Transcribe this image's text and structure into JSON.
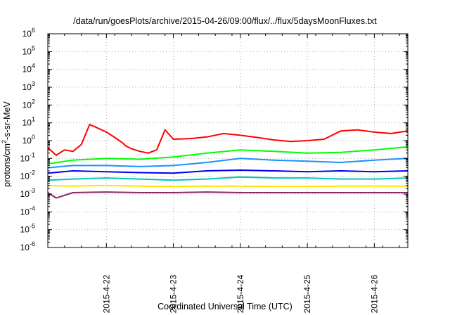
{
  "chart_data": {
    "type": "line",
    "title": "/data/run/goesPlots/archive/2015-04-26/09:00/flux/../flux/5daysMoonFluxes.txt",
    "xlabel": "Coordinated Universal Time (UTC)",
    "ylabel": {
      "base": "protons/cm",
      "sup": "2",
      "rest": "-s-sr-MeV"
    },
    "y_scale": "log",
    "ylim": [
      1e-06,
      1000000.0
    ],
    "y_ticks": [
      {
        "base": "10",
        "exp": "-6",
        "value": 1e-06
      },
      {
        "base": "10",
        "exp": "-5",
        "value": 1e-05
      },
      {
        "base": "10",
        "exp": "-4",
        "value": 0.0001
      },
      {
        "base": "10",
        "exp": "-3",
        "value": 0.001
      },
      {
        "base": "10",
        "exp": "-2",
        "value": 0.01
      },
      {
        "base": "10",
        "exp": "-1",
        "value": 0.1
      },
      {
        "base": "10",
        "exp": "0",
        "value": 1
      },
      {
        "base": "10",
        "exp": "1",
        "value": 10
      },
      {
        "base": "10",
        "exp": "2",
        "value": 100
      },
      {
        "base": "10",
        "exp": "3",
        "value": 1000
      },
      {
        "base": "10",
        "exp": "4",
        "value": 10000
      },
      {
        "base": "10",
        "exp": "5",
        "value": 100000
      },
      {
        "base": "10",
        "exp": "6",
        "value": 1000000
      }
    ],
    "x_ticks": [
      {
        "label": "2015-4-22",
        "value": "2015-04-22"
      },
      {
        "label": "2015-4-23",
        "value": "2015-04-23"
      },
      {
        "label": "2015-4-24",
        "value": "2015-04-24"
      },
      {
        "label": "2015-4-25",
        "value": "2015-04-25"
      },
      {
        "label": "2015-4-26",
        "value": "2015-04-26"
      }
    ],
    "xlim": [
      "2015-04-21 03:00",
      "2015-04-26 12:00"
    ],
    "grid": true,
    "legend": "none",
    "series": [
      {
        "color": "#ff0000",
        "x": [
          "2015-04-21 03:00",
          "2015-04-21 06:00",
          "2015-04-21 09:00",
          "2015-04-21 12:00",
          "2015-04-21 15:00",
          "2015-04-21 18:00",
          "2015-04-21 21:00",
          "2015-04-22 00:00",
          "2015-04-22 03:00",
          "2015-04-22 06:00",
          "2015-04-22 07:00",
          "2015-04-22 09:00",
          "2015-04-22 12:00",
          "2015-04-22 15:00",
          "2015-04-22 18:00",
          "2015-04-22 21:00",
          "2015-04-23 00:00",
          "2015-04-23 06:00",
          "2015-04-23 12:00",
          "2015-04-23 18:00",
          "2015-04-24 00:00",
          "2015-04-24 06:00",
          "2015-04-24 12:00",
          "2015-04-24 18:00",
          "2015-04-25 00:00",
          "2015-04-25 06:00",
          "2015-04-25 12:00",
          "2015-04-25 18:00",
          "2015-04-26 00:00",
          "2015-04-26 06:00",
          "2015-04-26 12:00"
        ],
        "y": [
          0.4,
          0.15,
          0.3,
          0.25,
          0.6,
          8,
          5,
          3,
          1.5,
          0.7,
          0.5,
          0.35,
          0.25,
          0.2,
          0.3,
          4,
          1.2,
          1.3,
          1.6,
          2.5,
          2,
          1.5,
          1.1,
          0.9,
          1,
          1.2,
          3.5,
          4,
          3,
          2.5,
          3.5
        ]
      },
      {
        "color": "#00ff00",
        "x": [
          "2015-04-21 03:00",
          "2015-04-21 12:00",
          "2015-04-22 00:00",
          "2015-04-22 12:00",
          "2015-04-23 00:00",
          "2015-04-23 12:00",
          "2015-04-24 00:00",
          "2015-04-24 12:00",
          "2015-04-25 00:00",
          "2015-04-25 12:00",
          "2015-04-26 00:00",
          "2015-04-26 12:00"
        ],
        "y": [
          0.05,
          0.08,
          0.1,
          0.09,
          0.12,
          0.2,
          0.3,
          0.25,
          0.2,
          0.22,
          0.3,
          0.45
        ]
      },
      {
        "color": "#1e90ff",
        "x": [
          "2015-04-21 03:00",
          "2015-04-21 12:00",
          "2015-04-22 00:00",
          "2015-04-22 12:00",
          "2015-04-23 00:00",
          "2015-04-23 12:00",
          "2015-04-24 00:00",
          "2015-04-24 12:00",
          "2015-04-25 00:00",
          "2015-04-25 12:00",
          "2015-04-26 00:00",
          "2015-04-26 12:00"
        ],
        "y": [
          0.03,
          0.04,
          0.04,
          0.035,
          0.04,
          0.06,
          0.1,
          0.08,
          0.07,
          0.06,
          0.08,
          0.1
        ]
      },
      {
        "color": "#0000ee",
        "x": [
          "2015-04-21 03:00",
          "2015-04-21 12:00",
          "2015-04-22 00:00",
          "2015-04-22 12:00",
          "2015-04-23 00:00",
          "2015-04-23 12:00",
          "2015-04-24 00:00",
          "2015-04-24 12:00",
          "2015-04-25 00:00",
          "2015-04-25 12:00",
          "2015-04-26 00:00",
          "2015-04-26 12:00"
        ],
        "y": [
          0.015,
          0.02,
          0.018,
          0.016,
          0.015,
          0.02,
          0.022,
          0.02,
          0.018,
          0.02,
          0.018,
          0.02
        ]
      },
      {
        "color": "#00c8b4",
        "x": [
          "2015-04-21 03:00",
          "2015-04-21 12:00",
          "2015-04-22 00:00",
          "2015-04-22 12:00",
          "2015-04-23 00:00",
          "2015-04-23 12:00",
          "2015-04-24 00:00",
          "2015-04-24 12:00",
          "2015-04-25 00:00",
          "2015-04-25 12:00",
          "2015-04-26 00:00",
          "2015-04-26 12:00"
        ],
        "y": [
          0.006,
          0.007,
          0.008,
          0.007,
          0.006,
          0.007,
          0.009,
          0.008,
          0.008,
          0.007,
          0.007,
          0.008
        ]
      },
      {
        "color": "#ffe600",
        "x": [
          "2015-04-21 03:00",
          "2015-04-21 12:00",
          "2015-04-22 00:00",
          "2015-04-22 12:00",
          "2015-04-23 00:00",
          "2015-04-23 12:00",
          "2015-04-24 00:00",
          "2015-04-24 12:00",
          "2015-04-25 00:00",
          "2015-04-25 12:00",
          "2015-04-26 00:00",
          "2015-04-26 12:00"
        ],
        "y": [
          0.003,
          0.0028,
          0.003,
          0.0028,
          0.0027,
          0.0028,
          0.0028,
          0.0027,
          0.0027,
          0.0028,
          0.0028,
          0.0028
        ]
      },
      {
        "color": "#8b2a6b",
        "x": [
          "2015-04-21 03:00",
          "2015-04-21 06:00",
          "2015-04-21 12:00",
          "2015-04-22 00:00",
          "2015-04-22 12:00",
          "2015-04-23 00:00",
          "2015-04-23 12:00",
          "2015-04-24 00:00",
          "2015-04-24 12:00",
          "2015-04-25 00:00",
          "2015-04-25 12:00",
          "2015-04-26 00:00",
          "2015-04-26 12:00"
        ],
        "y": [
          0.0012,
          0.0006,
          0.0012,
          0.0013,
          0.0012,
          0.0012,
          0.0013,
          0.0012,
          0.0012,
          0.0012,
          0.0012,
          0.0012,
          0.0012
        ]
      }
    ]
  }
}
